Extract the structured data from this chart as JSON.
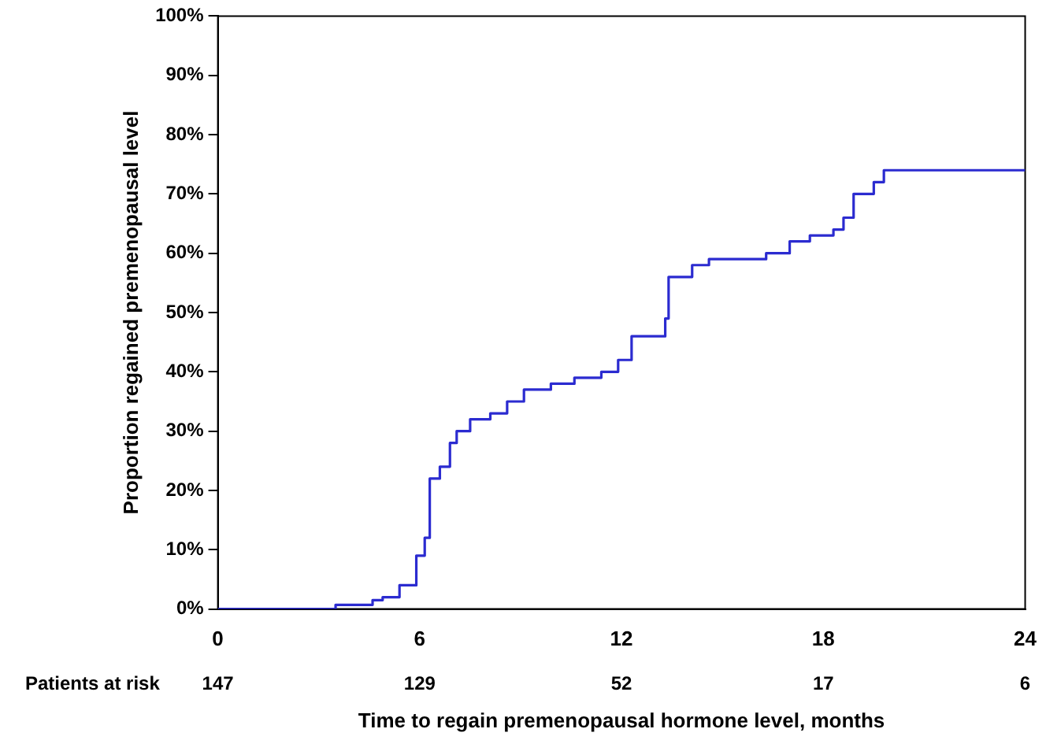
{
  "chart_data": {
    "type": "step",
    "xlabel": "Time to regain premenopausal hormone level, months",
    "ylabel": "Proportion regained premenopausal level",
    "x": [
      0,
      3.5,
      4.6,
      4.9,
      5.4,
      5.9,
      6.15,
      6.3,
      6.6,
      6.9,
      7.1,
      7.5,
      8.1,
      8.6,
      9.1,
      9.9,
      10.6,
      11.4,
      11.9,
      12.3,
      13.3,
      13.4,
      14.1,
      14.6,
      16.3,
      17,
      17.6,
      18.3,
      18.6,
      18.9,
      19.5,
      19.8,
      24
    ],
    "series": [
      {
        "color": "#2b2bd0",
        "values": [
          0,
          0.7,
          1.5,
          2,
          4,
          9,
          12,
          22,
          24,
          28,
          30,
          32,
          33,
          35,
          37,
          38,
          39,
          40,
          42,
          46,
          49,
          56,
          58,
          59,
          60,
          62,
          63,
          64,
          66,
          70,
          72,
          74,
          74
        ]
      }
    ],
    "xlim": [
      0,
      24
    ],
    "xticks": [
      0,
      6,
      12,
      18,
      24
    ],
    "ylim": [
      0,
      100
    ],
    "yticks": [
      {
        "value": 0,
        "label": "0%"
      },
      {
        "value": 10,
        "label": "10%"
      },
      {
        "value": 20,
        "label": "20%"
      },
      {
        "value": 30,
        "label": "30%"
      },
      {
        "value": 40,
        "label": "40%"
      },
      {
        "value": 50,
        "label": "50%"
      },
      {
        "value": 60,
        "label": "60%"
      },
      {
        "value": 70,
        "label": "70%"
      },
      {
        "value": 80,
        "label": "80%"
      },
      {
        "value": 90,
        "label": "90%"
      },
      {
        "value": 100,
        "label": "100%"
      }
    ],
    "annotations": [
      "Patients at risk",
      "147",
      "129",
      "52",
      "17",
      "6"
    ],
    "grid": false,
    "legend": false,
    "marker": "none",
    "line_style": "solid"
  }
}
